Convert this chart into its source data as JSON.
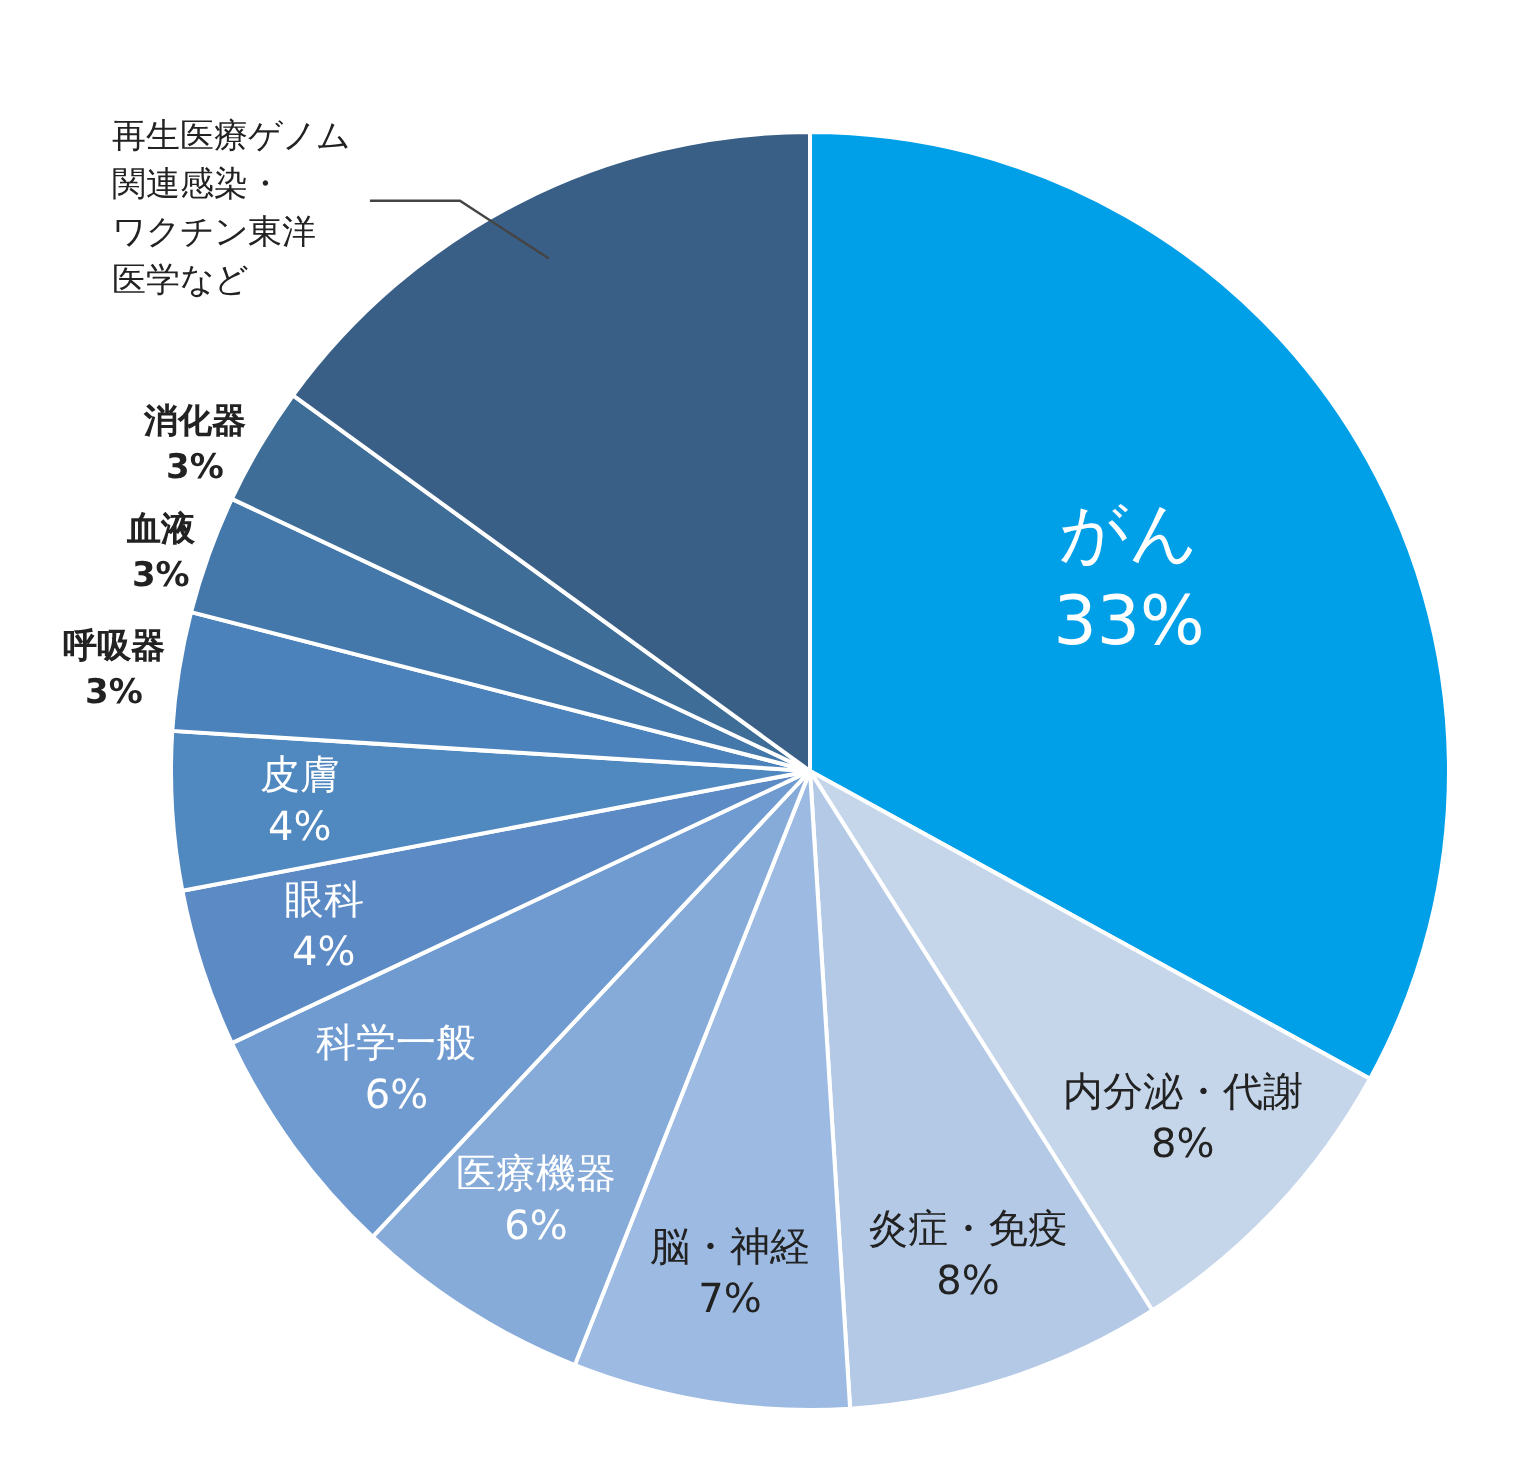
{
  "chart_data": {
    "type": "pie",
    "categories": [
      "がん",
      "内分泌・代謝",
      "炎症・免疫",
      "脳・神経",
      "医療機器",
      "科学一般",
      "眼科",
      "皮膚",
      "呼吸器",
      "血液",
      "消化器",
      "再生医療ゲノム関連感染・ワクチン東洋医学など"
    ],
    "values": [
      33,
      8,
      8,
      7,
      6,
      6,
      4,
      4,
      3,
      3,
      3,
      15
    ],
    "value_labels": [
      "33%",
      "8%",
      "8%",
      "7%",
      "6%",
      "6%",
      "4%",
      "4%",
      "3%",
      "3%",
      "3%",
      null
    ],
    "colors": [
      "#00a0e9",
      "#c5d5ea",
      "#b4c9e6",
      "#9dbbe2",
      "#86abd9",
      "#6f9bd0",
      "#5b8ac4",
      "#5088c0",
      "#4b82bb",
      "#4477aa",
      "#3e6d98",
      "#3a5f87"
    ],
    "legend": false
  }
}
